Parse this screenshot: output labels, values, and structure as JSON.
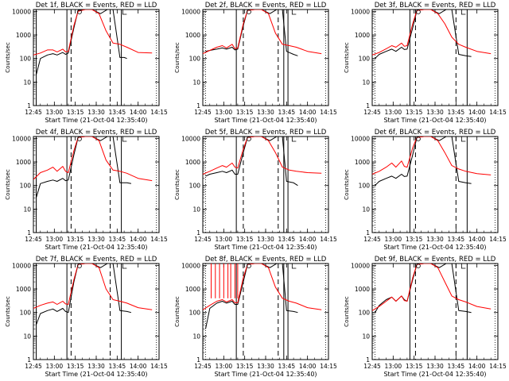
{
  "colors": {
    "events": "#000000",
    "lld": "#ff0000",
    "axes": "#000000",
    "background": "#ffffff"
  },
  "shared": {
    "xlabel": "Start Time (21-Oct-04 12:35:40)",
    "ylabel": "Counts/sec",
    "xticks": [
      "12:45",
      "13:00",
      "13:15",
      "13:30",
      "13:45",
      "14:00",
      "14:15"
    ],
    "yticks": [
      "1",
      "10",
      "100",
      "1000",
      "10000"
    ],
    "y_scale": "log",
    "ylim": [
      1,
      12000
    ]
  },
  "chart_data": [
    {
      "type": "line",
      "title": "Det 1f, BLACK = Events, RED = LLD",
      "series": [
        {
          "color": "#000000",
          "x": [
            "12:47",
            "12:50",
            "12:55",
            "12:59",
            "13:02",
            "13:06",
            "13:08",
            "13:10",
            "13:14",
            "13:17",
            "13:22",
            "13:27",
            "13:33",
            "13:38",
            "13:42",
            "13:47",
            "13:50",
            "13:52"
          ],
          "y": [
            20,
            100,
            140,
            160,
            140,
            180,
            150,
            170,
            2000,
            11000,
            12000,
            12000,
            8000,
            12000,
            12000,
            110,
            110,
            100
          ]
        },
        {
          "color": "#ff0000",
          "x": [
            "12:45",
            "12:50",
            "12:55",
            "12:59",
            "13:02",
            "13:06",
            "13:08",
            "13:10",
            "13:14",
            "13:17",
            "13:22",
            "13:27",
            "13:32",
            "13:37",
            "13:42",
            "13:47",
            "13:52",
            "14:00",
            "14:10"
          ],
          "y": [
            140,
            170,
            230,
            230,
            190,
            250,
            190,
            200,
            2500,
            10000,
            12000,
            12000,
            8000,
            1500,
            450,
            400,
            300,
            180,
            170
          ]
        }
      ],
      "vlines_solid": [
        "12:47",
        "13:09",
        "13:48"
      ],
      "vlines_dashed": [
        "13:12",
        "13:40"
      ]
    },
    {
      "type": "line",
      "title": "Det 2f, BLACK = Events, RED = LLD",
      "series": [
        {
          "color": "#000000",
          "x": [
            "12:47",
            "12:50",
            "12:55",
            "12:59",
            "13:02",
            "13:06",
            "13:08",
            "13:10",
            "13:14",
            "13:17",
            "13:22",
            "13:27",
            "13:33",
            "13:38",
            "13:42",
            "13:45",
            "13:50",
            "13:53"
          ],
          "y": [
            200,
            220,
            250,
            280,
            250,
            300,
            230,
            250,
            2500,
            11000,
            12000,
            12000,
            8000,
            12000,
            12000,
            200,
            150,
            130
          ]
        },
        {
          "color": "#ff0000",
          "x": [
            "12:45",
            "12:50",
            "12:55",
            "12:59",
            "13:02",
            "13:06",
            "13:08",
            "13:10",
            "13:14",
            "13:17",
            "13:22",
            "13:27",
            "13:32",
            "13:37",
            "13:42",
            "13:47",
            "13:52",
            "14:00",
            "14:10"
          ],
          "y": [
            160,
            220,
            300,
            350,
            280,
            400,
            260,
            280,
            3000,
            11000,
            12000,
            12000,
            8000,
            1200,
            400,
            350,
            300,
            200,
            160
          ]
        }
      ],
      "vlines_solid": [
        "13:09",
        "13:43",
        "13:46"
      ],
      "vlines_dashed": [
        "13:14",
        "13:39"
      ]
    },
    {
      "type": "line",
      "title": "Det 3f, BLACK = Events, RED = LLD",
      "series": [
        {
          "color": "#000000",
          "x": [
            "12:47",
            "12:50",
            "12:55",
            "12:59",
            "13:02",
            "13:06",
            "13:08",
            "13:10",
            "13:14",
            "13:17",
            "13:22",
            "13:27",
            "13:33",
            "13:38",
            "13:42",
            "13:47",
            "13:52",
            "13:56"
          ],
          "y": [
            100,
            150,
            200,
            250,
            200,
            300,
            240,
            250,
            2000,
            11000,
            12000,
            12000,
            8000,
            12000,
            12000,
            150,
            130,
            120
          ]
        },
        {
          "color": "#ff0000",
          "x": [
            "12:45",
            "12:50",
            "12:55",
            "12:59",
            "13:02",
            "13:06",
            "13:08",
            "13:10",
            "13:14",
            "13:17",
            "13:22",
            "13:27",
            "13:32",
            "13:37",
            "13:42",
            "13:47",
            "13:52",
            "14:00",
            "14:10"
          ],
          "y": [
            140,
            180,
            260,
            350,
            300,
            450,
            330,
            350,
            3000,
            11000,
            12000,
            12000,
            8000,
            3000,
            800,
            400,
            300,
            200,
            160
          ]
        }
      ],
      "vlines_solid": [
        "13:12",
        "13:53"
      ],
      "vlines_dashed": [
        "13:16",
        "13:45"
      ]
    },
    {
      "type": "line",
      "title": "Det 4f, BLACK = Events, RED = LLD",
      "series": [
        {
          "color": "#000000",
          "x": [
            "12:47",
            "12:50",
            "12:55",
            "12:59",
            "13:02",
            "13:06",
            "13:08",
            "13:10",
            "13:14",
            "13:17",
            "13:22",
            "13:27",
            "13:33",
            "13:38",
            "13:42",
            "13:47",
            "13:52",
            "13:55"
          ],
          "y": [
            30,
            120,
            150,
            170,
            150,
            200,
            160,
            170,
            2000,
            11000,
            12000,
            12000,
            8000,
            12000,
            12000,
            130,
            130,
            120
          ]
        },
        {
          "color": "#ff0000",
          "x": [
            "12:45",
            "12:50",
            "12:55",
            "12:59",
            "13:02",
            "13:06",
            "13:08",
            "13:10",
            "13:14",
            "13:17",
            "13:22",
            "13:27",
            "13:32",
            "13:37",
            "13:42",
            "13:47",
            "13:52",
            "14:00",
            "14:10"
          ],
          "y": [
            180,
            350,
            450,
            600,
            400,
            650,
            400,
            350,
            3000,
            11000,
            12000,
            12000,
            8000,
            1200,
            450,
            400,
            330,
            200,
            160
          ]
        }
      ],
      "vlines_solid": [
        "12:47",
        "13:09",
        "13:48"
      ],
      "vlines_dashed": [
        "13:12",
        "13:40"
      ]
    },
    {
      "type": "line",
      "title": "Det 5f, BLACK = Events, RED = LLD",
      "series": [
        {
          "color": "#000000",
          "x": [
            "12:47",
            "12:50",
            "12:55",
            "12:59",
            "13:02",
            "13:06",
            "13:08",
            "13:10",
            "13:14",
            "13:17",
            "13:22",
            "13:27",
            "13:33",
            "13:38",
            "13:42",
            "13:45",
            "13:50",
            "13:53"
          ],
          "y": [
            250,
            300,
            350,
            400,
            350,
            450,
            300,
            300,
            2500,
            11000,
            12000,
            12000,
            8000,
            12000,
            12000,
            150,
            130,
            100
          ]
        },
        {
          "color": "#ff0000",
          "x": [
            "12:45",
            "12:50",
            "12:55",
            "12:59",
            "13:02",
            "13:06",
            "13:08",
            "13:10",
            "13:14",
            "13:17",
            "13:22",
            "13:27",
            "13:32",
            "13:37",
            "13:42",
            "13:47",
            "13:52",
            "14:00",
            "14:10"
          ],
          "y": [
            300,
            400,
            550,
            700,
            600,
            900,
            600,
            550,
            3500,
            11000,
            12000,
            12000,
            8000,
            2500,
            600,
            450,
            400,
            350,
            330
          ]
        }
      ],
      "vlines_solid": [
        "13:09",
        "13:43",
        "13:46"
      ],
      "vlines_dashed": [
        "13:14",
        "13:39"
      ]
    },
    {
      "type": "line",
      "title": "Det 6f, BLACK = Events, RED = LLD",
      "series": [
        {
          "color": "#000000",
          "x": [
            "12:47",
            "12:50",
            "12:55",
            "12:59",
            "13:02",
            "13:06",
            "13:08",
            "13:10",
            "13:14",
            "13:17",
            "13:22",
            "13:27",
            "13:33",
            "13:38",
            "13:42",
            "13:47",
            "13:52",
            "13:56"
          ],
          "y": [
            100,
            150,
            200,
            250,
            200,
            300,
            240,
            250,
            2000,
            11000,
            12000,
            12000,
            8000,
            12000,
            12000,
            150,
            130,
            120
          ]
        },
        {
          "color": "#ff0000",
          "x": [
            "12:45",
            "12:50",
            "12:55",
            "12:59",
            "13:02",
            "13:06",
            "13:08",
            "13:10",
            "13:14",
            "13:17",
            "13:22",
            "13:27",
            "13:32",
            "13:37",
            "13:42",
            "13:47",
            "13:52",
            "14:00",
            "14:10"
          ],
          "y": [
            300,
            400,
            600,
            900,
            600,
            1100,
            650,
            600,
            4000,
            11000,
            12000,
            12000,
            8000,
            2500,
            700,
            500,
            400,
            320,
            280
          ]
        }
      ],
      "vlines_solid": [
        "13:12",
        "13:53"
      ],
      "vlines_dashed": [
        "13:16",
        "13:45"
      ]
    },
    {
      "type": "line",
      "title": "Det 7f, BLACK = Events, RED = LLD",
      "series": [
        {
          "color": "#000000",
          "x": [
            "12:47",
            "12:50",
            "12:55",
            "12:59",
            "13:02",
            "13:06",
            "13:08",
            "13:10",
            "13:14",
            "13:17",
            "13:22",
            "13:27",
            "13:33",
            "13:38",
            "13:42",
            "13:47",
            "13:52",
            "13:55"
          ],
          "y": [
            30,
            90,
            120,
            140,
            110,
            150,
            110,
            100,
            2000,
            11000,
            12000,
            12000,
            8000,
            12000,
            12000,
            120,
            110,
            100
          ]
        },
        {
          "color": "#ff0000",
          "x": [
            "12:45",
            "12:50",
            "12:55",
            "12:59",
            "13:02",
            "13:06",
            "13:08",
            "13:10",
            "13:14",
            "13:17",
            "13:22",
            "13:27",
            "13:32",
            "13:37",
            "13:42",
            "13:47",
            "13:52",
            "14:00",
            "14:10"
          ],
          "y": [
            150,
            200,
            250,
            280,
            220,
            300,
            230,
            220,
            2500,
            11000,
            12000,
            12000,
            8000,
            1000,
            350,
            300,
            250,
            160,
            130
          ]
        }
      ],
      "vlines_solid": [
        "12:47",
        "13:09",
        "13:48"
      ],
      "vlines_dashed": [
        "13:12",
        "13:40"
      ]
    },
    {
      "type": "line",
      "title": "Det 8f, BLACK = Events, RED = LLD",
      "series": [
        {
          "color": "#000000",
          "x": [
            "12:47",
            "12:50",
            "12:55",
            "12:59",
            "13:02",
            "13:06",
            "13:08",
            "13:10",
            "13:14",
            "13:17",
            "13:22",
            "13:27",
            "13:33",
            "13:38",
            "13:42",
            "13:45",
            "13:50",
            "13:53"
          ],
          "y": [
            20,
            150,
            250,
            300,
            250,
            300,
            220,
            220,
            2000,
            11000,
            12000,
            12000,
            8000,
            12000,
            12000,
            120,
            110,
            100
          ]
        },
        {
          "color": "#ff0000",
          "x": [
            "12:45",
            "12:50",
            "12:55",
            "12:59",
            "13:02",
            "13:06",
            "13:08",
            "13:10",
            "13:14",
            "13:17",
            "13:22",
            "13:27",
            "13:32",
            "13:37",
            "13:42",
            "13:47",
            "13:52",
            "14:00",
            "14:10"
          ],
          "y": [
            130,
            200,
            300,
            350,
            280,
            350,
            260,
            260,
            3000,
            11000,
            12000,
            12000,
            8000,
            1200,
            400,
            300,
            250,
            160,
            130
          ]
        }
      ],
      "vlines_solid": [
        "13:09",
        "13:43",
        "13:46"
      ],
      "vlines_dashed": [
        "13:14",
        "13:39"
      ],
      "red_spikes": [
        "12:51",
        "12:54",
        "12:57",
        "13:00",
        "13:03",
        "13:05",
        "13:08",
        "13:10"
      ]
    },
    {
      "type": "line",
      "title": "Det 9f, BLACK = Events, RED = LLD",
      "series": [
        {
          "color": "#000000",
          "x": [
            "12:47",
            "12:50",
            "12:55",
            "12:59",
            "13:02",
            "13:06",
            "13:08",
            "13:10",
            "13:14",
            "13:17",
            "13:22",
            "13:27",
            "13:33",
            "13:38",
            "13:42",
            "13:47",
            "13:52",
            "13:56"
          ],
          "y": [
            100,
            200,
            350,
            450,
            300,
            500,
            350,
            300,
            2500,
            11000,
            12000,
            12000,
            8000,
            12000,
            12000,
            120,
            110,
            100
          ]
        },
        {
          "color": "#ff0000",
          "x": [
            "12:45",
            "12:50",
            "12:55",
            "12:59",
            "13:02",
            "13:06",
            "13:08",
            "13:10",
            "13:14",
            "13:17",
            "13:22",
            "13:27",
            "13:32",
            "13:37",
            "13:42",
            "13:47",
            "13:52",
            "14:00",
            "14:10"
          ],
          "y": [
            120,
            180,
            300,
            450,
            300,
            500,
            320,
            300,
            3000,
            11000,
            12000,
            12000,
            8000,
            2000,
            500,
            350,
            280,
            180,
            140
          ]
        }
      ],
      "vlines_solid": [
        "13:12",
        "13:53"
      ],
      "vlines_dashed": [
        "13:16",
        "13:45"
      ]
    }
  ]
}
